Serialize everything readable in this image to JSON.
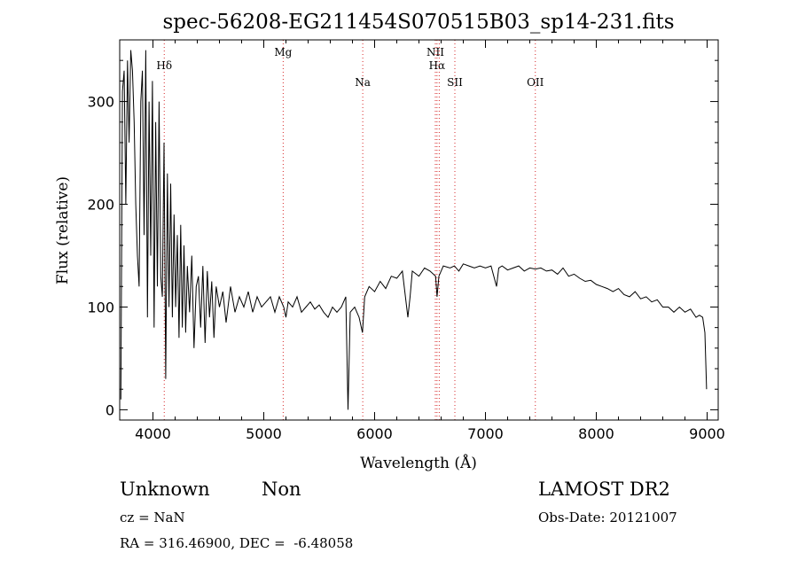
{
  "chart_data": {
    "type": "line",
    "title": "spec-56208-EG211454S070515B03_sp14-231.fits",
    "xlabel": "Wavelength (Å)",
    "ylabel": "Flux (relative)",
    "xlim": [
      3700,
      9100
    ],
    "ylim": [
      -10,
      360
    ],
    "xticks": [
      4000,
      5000,
      6000,
      7000,
      8000,
      9000
    ],
    "yticks": [
      0,
      100,
      200,
      300
    ],
    "grid": false,
    "series": [
      {
        "x": [
          3710,
          3725,
          3740,
          3755,
          3770,
          3785,
          3800,
          3815,
          3830,
          3845,
          3860,
          3875,
          3890,
          3905,
          3920,
          3935,
          3950,
          3965,
          3980,
          3995,
          4010,
          4025,
          4040,
          4055,
          4070,
          4085,
          4100,
          4115,
          4130,
          4145,
          4160,
          4175,
          4190,
          4205,
          4220,
          4235,
          4250,
          4265,
          4280,
          4295,
          4310,
          4330,
          4350,
          4370,
          4390,
          4410,
          4430,
          4450,
          4470,
          4490,
          4510,
          4530,
          4550,
          4570,
          4600,
          4630,
          4660,
          4700,
          4740,
          4780,
          4820,
          4860,
          4900,
          4940,
          4980,
          5020,
          5060,
          5100,
          5140,
          5180,
          5200,
          5220,
          5260,
          5300,
          5340,
          5380,
          5420,
          5460,
          5500,
          5540,
          5580,
          5620,
          5660,
          5700,
          5740,
          5760,
          5780,
          5820,
          5860,
          5890,
          5910,
          5950,
          6000,
          6050,
          6100,
          6150,
          6200,
          6250,
          6300,
          6320,
          6340,
          6400,
          6450,
          6500,
          6550,
          6563,
          6580,
          6620,
          6680,
          6720,
          6760,
          6800,
          6850,
          6900,
          6950,
          7000,
          7050,
          7100,
          7120,
          7150,
          7200,
          7250,
          7300,
          7350,
          7400,
          7450,
          7500,
          7550,
          7600,
          7650,
          7700,
          7750,
          7800,
          7850,
          7900,
          7950,
          8000,
          8050,
          8100,
          8150,
          8200,
          8250,
          8300,
          8350,
          8400,
          8450,
          8500,
          8550,
          8600,
          8650,
          8700,
          8750,
          8800,
          8850,
          8900,
          8930,
          8960,
          8980,
          8995
        ],
        "y": [
          10,
          310,
          330,
          200,
          340,
          260,
          350,
          330,
          280,
          200,
          150,
          120,
          300,
          330,
          170,
          350,
          90,
          300,
          150,
          320,
          80,
          280,
          120,
          300,
          130,
          110,
          260,
          30,
          230,
          100,
          220,
          90,
          190,
          100,
          170,
          70,
          180,
          80,
          160,
          75,
          140,
          95,
          150,
          60,
          120,
          130,
          80,
          140,
          65,
          135,
          90,
          125,
          70,
          120,
          100,
          115,
          85,
          120,
          95,
          110,
          100,
          115,
          95,
          110,
          100,
          105,
          110,
          95,
          110,
          100,
          90,
          105,
          100,
          110,
          95,
          100,
          105,
          98,
          102,
          95,
          90,
          100,
          95,
          100,
          110,
          0,
          95,
          100,
          90,
          75,
          110,
          120,
          115,
          125,
          118,
          130,
          128,
          135,
          90,
          110,
          135,
          130,
          138,
          135,
          130,
          110,
          130,
          140,
          138,
          140,
          135,
          142,
          140,
          138,
          140,
          138,
          140,
          120,
          138,
          140,
          136,
          138,
          140,
          135,
          138,
          137,
          138,
          135,
          136,
          132,
          138,
          130,
          132,
          128,
          125,
          126,
          122,
          120,
          118,
          115,
          118,
          112,
          110,
          115,
          108,
          110,
          105,
          107,
          100,
          100,
          95,
          100,
          95,
          98,
          90,
          92,
          90,
          75,
          20
        ]
      }
    ],
    "lines": [
      {
        "label": "Hδ",
        "x": 4102
      },
      {
        "label": "Mg",
        "x": 5175
      },
      {
        "label": "Na",
        "x": 5893
      },
      {
        "label": "NII",
        "x": 6548
      },
      {
        "label": "Hα",
        "x": 6563
      },
      {
        "label": "NII",
        "x": 6583
      },
      {
        "label": "SII",
        "x": 6724
      },
      {
        "label": "OII",
        "x": 7450
      }
    ]
  },
  "info": {
    "class": "Unknown",
    "subclass": "Non",
    "survey": "LAMOST DR2",
    "cz": "cz = NaN",
    "obs_date": "Obs-Date: 20121007",
    "coords": "RA = 316.46900, DEC =  -6.48058"
  },
  "colors": {
    "spectrum": "#000000",
    "emission_lines": "#d62728",
    "axes": "#000000"
  }
}
